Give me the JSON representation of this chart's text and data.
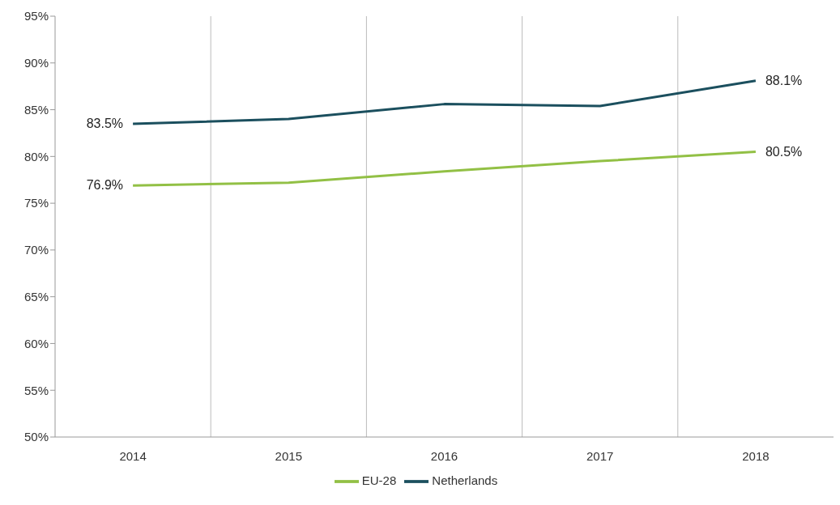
{
  "chart_data": {
    "type": "line",
    "categories": [
      "2014",
      "2015",
      "2016",
      "2017",
      "2018"
    ],
    "series": [
      {
        "name": "EU-28",
        "color": "#92c045",
        "values": [
          76.9,
          77.2,
          78.4,
          79.5,
          80.5
        ],
        "value_labels": [
          "76.9%",
          null,
          null,
          null,
          "80.5%"
        ]
      },
      {
        "name": "Netherlands",
        "color": "#1b4f5e",
        "values": [
          83.5,
          84.0,
          85.6,
          85.4,
          88.1
        ],
        "value_labels": [
          "83.5%",
          null,
          null,
          null,
          "88.1%"
        ]
      }
    ],
    "ylim": [
      50,
      95
    ],
    "yticks": [
      {
        "value": 50,
        "label": "50%"
      },
      {
        "value": 55,
        "label": "55%"
      },
      {
        "value": 60,
        "label": "60%"
      },
      {
        "value": 65,
        "label": "65%"
      },
      {
        "value": 70,
        "label": "70%"
      },
      {
        "value": 75,
        "label": "75%"
      },
      {
        "value": 80,
        "label": "80%"
      },
      {
        "value": 85,
        "label": "85%"
      },
      {
        "value": 90,
        "label": "90%"
      },
      {
        "value": 95,
        "label": "95%"
      }
    ],
    "grid": "x",
    "legend": "bottom",
    "marker": "none",
    "line_style": "solid"
  }
}
